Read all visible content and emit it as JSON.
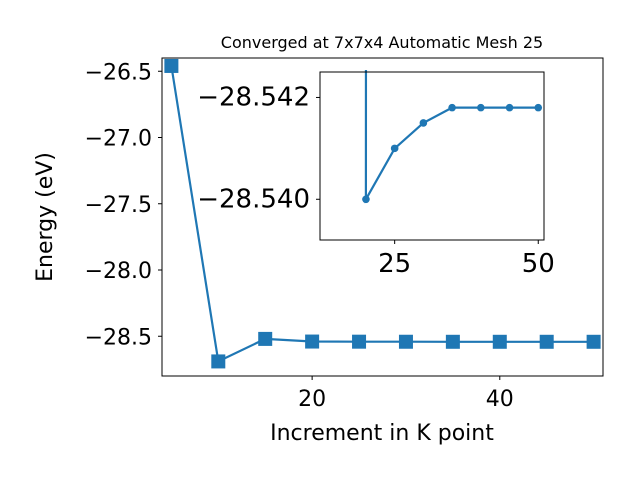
{
  "chart_data": [
    {
      "type": "line",
      "title": "Converged at 7x7x4 Automatic Mesh 25",
      "xlabel": "Increment in K point",
      "ylabel": "Energy (eV)",
      "xlim": [
        4,
        51
      ],
      "ylim": [
        -28.8,
        -26.4
      ],
      "xticks": [
        20,
        40
      ],
      "xtick_labels": [
        "20",
        "40"
      ],
      "yticks": [
        -26.5,
        -27.0,
        -27.5,
        -28.0,
        -28.5
      ],
      "ytick_labels": [
        "−26.5",
        "−27.0",
        "−27.5",
        "−28.0",
        "−28.5"
      ],
      "marker": "square",
      "color": "#1f77b4",
      "grid": false,
      "series": [
        {
          "x": [
            5,
            10,
            15,
            20,
            25,
            30,
            35,
            40,
            45,
            50
          ],
          "y": [
            -26.46,
            -28.69,
            -28.52,
            -28.54,
            -28.541,
            -28.5415,
            -28.5418,
            -28.5418,
            -28.5418,
            -28.5418
          ]
        }
      ]
    },
    {
      "type": "line",
      "title": "",
      "xlabel": "",
      "ylabel": "",
      "xlim": [
        12,
        51
      ],
      "ylim": [
        -28.5392,
        -28.5425
      ],
      "xticks": [
        25,
        50
      ],
      "xtick_labels": [
        "25",
        "50"
      ],
      "yticks": [
        -28.542,
        -28.54
      ],
      "ytick_labels": [
        "−28.542",
        "−28.540"
      ],
      "marker": "circle",
      "color": "#1f77b4",
      "grid": false,
      "series": [
        {
          "x": [
            20,
            25,
            30,
            35,
            40,
            45,
            50
          ],
          "y": [
            -28.54,
            -28.541,
            -28.5415,
            -28.5418,
            -28.5418,
            -28.5418,
            -28.5418
          ]
        }
      ]
    }
  ]
}
